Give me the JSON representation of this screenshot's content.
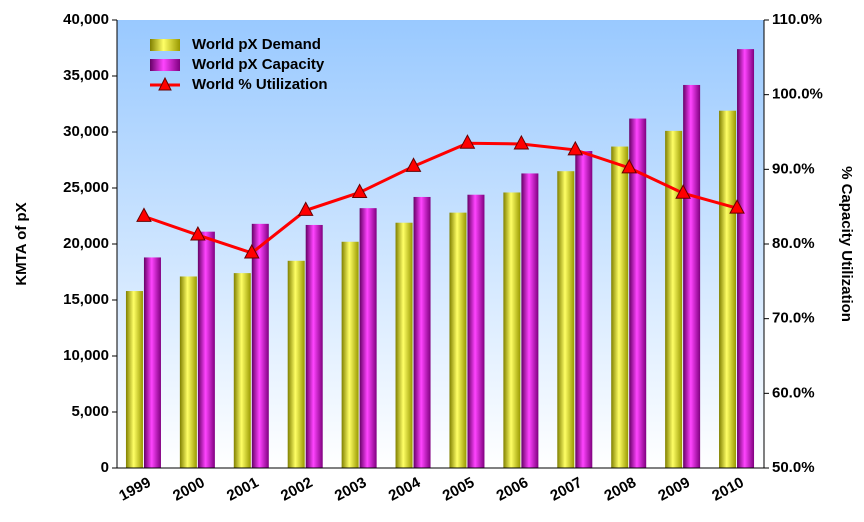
{
  "chart_data": {
    "type": "bar-line",
    "categories": [
      "1999",
      "2000",
      "2001",
      "2002",
      "2003",
      "2004",
      "2005",
      "2006",
      "2007",
      "2008",
      "2009",
      "2010"
    ],
    "series": [
      {
        "name": "World pX Demand",
        "color": "#e6e600",
        "values": [
          15800,
          17100,
          17400,
          18500,
          20200,
          21900,
          22800,
          24600,
          26500,
          28700,
          30100,
          31900
        ]
      },
      {
        "name": "World pX Capacity",
        "color": "#cc00cc",
        "values": [
          18800,
          21100,
          21800,
          21700,
          23200,
          24200,
          24400,
          26300,
          28300,
          31200,
          34200,
          37400
        ]
      },
      {
        "name": "World % Utilization",
        "color": "#ff0000",
        "axis": "y2",
        "values": [
          83.7,
          81.2,
          78.8,
          84.5,
          86.9,
          90.4,
          93.5,
          93.4,
          92.6,
          90.2,
          86.8,
          84.8
        ]
      }
    ],
    "y_label": "KMTA of pX",
    "y2_label": "% Capacity Utilization",
    "ylim": [
      0,
      40000
    ],
    "yticks": [
      0,
      {
        "value": 5000,
        "label": "5,000"
      },
      {
        "value": 10000,
        "label": "10,000"
      },
      {
        "value": 15000,
        "label": "15,000"
      },
      {
        "value": 20000,
        "label": "20,000"
      },
      {
        "value": 25000,
        "label": "25,000"
      },
      {
        "value": 30000,
        "label": "30,000"
      },
      {
        "value": 35000,
        "label": "35,000"
      },
      {
        "value": 40000,
        "label": "40,000"
      }
    ],
    "y2lim": [
      50,
      110
    ],
    "y2ticks": [
      {
        "value": 50,
        "label": "50.0%"
      },
      {
        "value": 60,
        "label": "60.0%"
      },
      {
        "value": 70,
        "label": "70.0%"
      },
      {
        "value": 80,
        "label": "80.0%"
      },
      {
        "value": 90,
        "label": "90.0%"
      },
      {
        "value": 100,
        "label": "100.0%"
      },
      {
        "value": 110,
        "label": "110.0%"
      }
    ],
    "legend": "upper left"
  }
}
